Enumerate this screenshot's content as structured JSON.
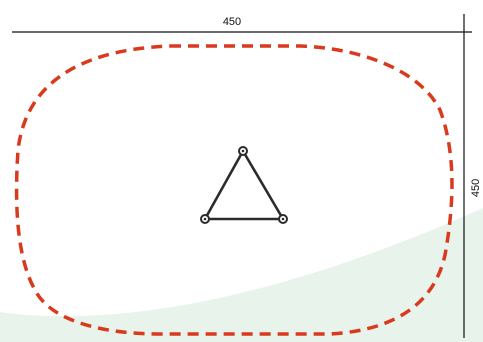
{
  "dimensions": {
    "width_label": "450",
    "height_label": "450"
  },
  "colors": {
    "background": "#ffffff",
    "ground_area": "#e8f3ec",
    "safety_zone": "#d9391c",
    "dimension_lines": "#111111",
    "frame": "#2b2b2b"
  }
}
